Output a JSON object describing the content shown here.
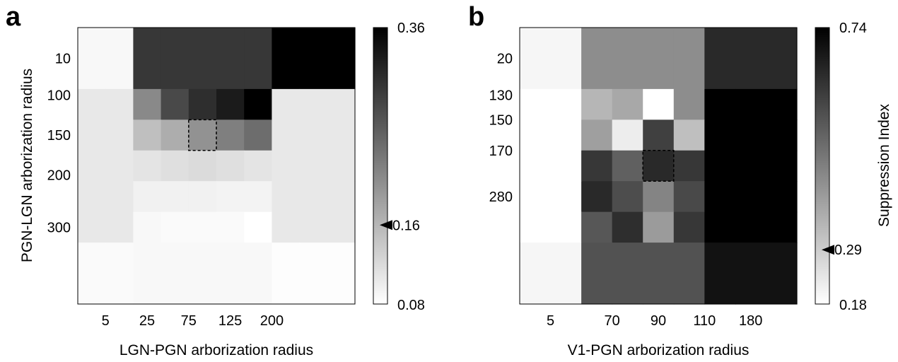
{
  "chart_data": [
    {
      "type": "heatmap",
      "panel_label": "a",
      "xlabel": "LGN-PGN arborization radius",
      "ylabel": "PGN-LGN arborization radius",
      "x_ticks": [
        "5",
        "25",
        "75",
        "125",
        "200"
      ],
      "y_ticks": [
        "10",
        "100",
        "150",
        "200",
        "300"
      ],
      "colorbar": {
        "min": 0.08,
        "max": 0.36,
        "min_label": "0.08",
        "max_label": "0.36",
        "label": "",
        "marker_value": 0.16,
        "marker_label": "0.16"
      },
      "grid_x_edges": [
        0,
        0.5,
        1.0,
        1.5,
        2.0,
        2.5,
        3.0,
        3.5,
        4.0,
        5.0
      ],
      "grid_y_edges": [
        0,
        1.0,
        1.5,
        2.0,
        2.5,
        3.0,
        3.5,
        4.5
      ],
      "x_tick_positions": [
        0.5,
        1.25,
        2.0,
        2.75,
        3.5
      ],
      "y_tick_positions": [
        0.5,
        1.1,
        1.75,
        2.4,
        3.25
      ],
      "values": [
        [
          0.088,
          0.088,
          0.3,
          0.3,
          0.3,
          0.3,
          0.3,
          0.36,
          0.36
        ],
        [
          0.105,
          0.105,
          0.21,
          0.28,
          0.31,
          0.33,
          0.36,
          0.105,
          0.105
        ],
        [
          0.105,
          0.105,
          0.15,
          0.17,
          0.2,
          0.22,
          0.24,
          0.105,
          0.105
        ],
        [
          0.105,
          0.105,
          0.11,
          0.115,
          0.12,
          0.115,
          0.11,
          0.105,
          0.105
        ],
        [
          0.105,
          0.105,
          0.095,
          0.095,
          0.095,
          0.093,
          0.093,
          0.105,
          0.105
        ],
        [
          0.105,
          0.105,
          0.088,
          0.085,
          0.085,
          0.085,
          0.08,
          0.105,
          0.105
        ],
        [
          0.085,
          0.085,
          0.088,
          0.088,
          0.088,
          0.088,
          0.088,
          0.082,
          0.082
        ]
      ],
      "highlight_cell": {
        "row": 2,
        "col": 4
      }
    },
    {
      "type": "heatmap",
      "panel_label": "b",
      "xlabel": "V1-PGN arborization radius",
      "ylabel": "",
      "x_ticks": [
        "5",
        "70",
        "90",
        "110",
        "180"
      ],
      "y_ticks": [
        "20",
        "130",
        "150",
        "170",
        "280"
      ],
      "colorbar": {
        "min": 0.18,
        "max": 0.74,
        "min_label": "0.18",
        "max_label": "0.74",
        "label": "Suppression Index",
        "marker_value": 0.29,
        "marker_label": "0.29"
      },
      "grid_x_edges": [
        0,
        1.0,
        1.5,
        2.0,
        2.5,
        3.0,
        3.5,
        4.5
      ],
      "grid_y_edges": [
        0,
        1.0,
        1.5,
        2.0,
        2.5,
        3.0,
        3.5,
        4.5
      ],
      "x_tick_positions": [
        0.5,
        1.5,
        2.25,
        3.0,
        3.75
      ],
      "y_tick_positions": [
        0.5,
        1.1,
        1.5,
        2.0,
        2.75
      ],
      "values": [
        [
          0.2,
          0.43,
          0.43,
          0.43,
          0.43,
          0.65,
          0.65
        ],
        [
          0.18,
          0.34,
          0.37,
          0.18,
          0.43,
          0.74,
          0.74
        ],
        [
          0.18,
          0.39,
          0.22,
          0.6,
          0.32,
          0.74,
          0.74
        ],
        [
          0.18,
          0.62,
          0.53,
          0.65,
          0.62,
          0.74,
          0.74
        ],
        [
          0.18,
          0.65,
          0.57,
          0.45,
          0.58,
          0.74,
          0.74
        ],
        [
          0.18,
          0.55,
          0.64,
          0.4,
          0.62,
          0.74,
          0.74
        ],
        [
          0.2,
          0.56,
          0.56,
          0.56,
          0.56,
          0.7,
          0.7
        ]
      ],
      "highlight_cell": {
        "row": 3,
        "col": 3
      }
    }
  ]
}
